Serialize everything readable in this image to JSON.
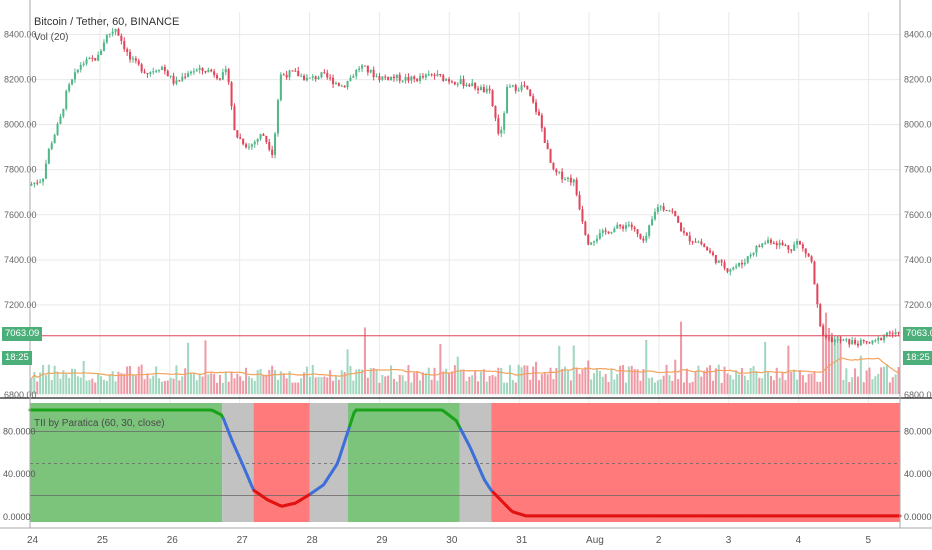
{
  "title_line": "Bitcoin / Tether, 60, BINANCE",
  "vol_label": "Vol (20)",
  "tii_label": "TII by Paratica (60, 30, close)",
  "badges": {
    "price": "7063.09",
    "time": "18:25",
    "price_right": "7063.09",
    "time_right": "18:25"
  },
  "colors": {
    "up": "#52b788",
    "down": "#e0455a",
    "grid": "#e9e9e9",
    "zone_green": "#7cc47c",
    "zone_red": "#ff7b7b",
    "zone_grey": "#c2c2c2",
    "tii_line_green": "#1aa31a",
    "tii_line_blue": "#3d6fd8",
    "tii_line_red": "#e31212",
    "vol_ma": "#f4a25c",
    "price_line": "#e0455a",
    "badge": "#4caf7a"
  },
  "chart_data": [
    {
      "type": "candlestick",
      "title": "Bitcoin / Tether, 60, BINANCE",
      "y_ticks": [
        "8400.00",
        "8200.00",
        "8000.00",
        "7800.00",
        "7600.00",
        "7400.00",
        "7200.00",
        "6800.00"
      ],
      "ylim": [
        6800,
        8500
      ],
      "x_ticks": [
        "24",
        "25",
        "26",
        "27",
        "28",
        "29",
        "30",
        "31",
        "Aug",
        "2",
        "3",
        "4",
        "5"
      ],
      "last_price": 7063.09,
      "series": [
        {
          "x": 0,
          "y": 7730
        },
        {
          "x": 0.2,
          "y": 7760
        },
        {
          "x": 0.3,
          "y": 7900
        },
        {
          "x": 0.45,
          "y": 8020
        },
        {
          "x": 0.55,
          "y": 8150
        },
        {
          "x": 0.75,
          "y": 8270
        },
        {
          "x": 1.0,
          "y": 8300
        },
        {
          "x": 1.1,
          "y": 8390
        },
        {
          "x": 1.25,
          "y": 8430
        },
        {
          "x": 1.45,
          "y": 8290
        },
        {
          "x": 1.7,
          "y": 8230
        },
        {
          "x": 1.9,
          "y": 8260
        },
        {
          "x": 2.1,
          "y": 8180
        },
        {
          "x": 2.3,
          "y": 8240
        },
        {
          "x": 2.6,
          "y": 8240
        },
        {
          "x": 2.75,
          "y": 8210
        },
        {
          "x": 2.85,
          "y": 8240
        },
        {
          "x": 2.95,
          "y": 7960
        },
        {
          "x": 3.15,
          "y": 7900
        },
        {
          "x": 3.35,
          "y": 7960
        },
        {
          "x": 3.5,
          "y": 7870
        },
        {
          "x": 3.6,
          "y": 8220
        },
        {
          "x": 3.8,
          "y": 8230
        },
        {
          "x": 4.0,
          "y": 8200
        },
        {
          "x": 4.2,
          "y": 8220
        },
        {
          "x": 4.5,
          "y": 8170
        },
        {
          "x": 4.75,
          "y": 8260
        },
        {
          "x": 5.0,
          "y": 8210
        },
        {
          "x": 5.2,
          "y": 8210
        },
        {
          "x": 5.5,
          "y": 8200
        },
        {
          "x": 5.8,
          "y": 8220
        },
        {
          "x": 6.0,
          "y": 8200
        },
        {
          "x": 6.3,
          "y": 8180
        },
        {
          "x": 6.6,
          "y": 8140
        },
        {
          "x": 6.75,
          "y": 7930
        },
        {
          "x": 6.85,
          "y": 8160
        },
        {
          "x": 7.1,
          "y": 8170
        },
        {
          "x": 7.3,
          "y": 8040
        },
        {
          "x": 7.5,
          "y": 7790
        },
        {
          "x": 7.8,
          "y": 7750
        },
        {
          "x": 8.0,
          "y": 7480
        },
        {
          "x": 8.3,
          "y": 7530
        },
        {
          "x": 8.6,
          "y": 7560
        },
        {
          "x": 8.8,
          "y": 7470
        },
        {
          "x": 9.0,
          "y": 7640
        },
        {
          "x": 9.2,
          "y": 7620
        },
        {
          "x": 9.4,
          "y": 7500
        },
        {
          "x": 9.6,
          "y": 7480
        },
        {
          "x": 9.9,
          "y": 7380
        },
        {
          "x": 10.0,
          "y": 7360
        },
        {
          "x": 10.2,
          "y": 7380
        },
        {
          "x": 10.4,
          "y": 7450
        },
        {
          "x": 10.6,
          "y": 7490
        },
        {
          "x": 10.9,
          "y": 7450
        },
        {
          "x": 11.0,
          "y": 7480
        },
        {
          "x": 11.2,
          "y": 7400
        },
        {
          "x": 11.35,
          "y": 7050
        },
        {
          "x": 11.6,
          "y": 7040
        },
        {
          "x": 11.9,
          "y": 7030
        },
        {
          "x": 12.1,
          "y": 7030
        },
        {
          "x": 12.3,
          "y": 7080
        },
        {
          "x": 12.45,
          "y": 7063
        }
      ]
    },
    {
      "type": "bar",
      "title": "Vol (20)",
      "note": "volume bars with 20-period moving average"
    },
    {
      "type": "line",
      "title": "TII by Paratica (60, 30, close)",
      "ylim": [
        0,
        100
      ],
      "y_ticks": [
        "80.0000",
        "40.0000",
        "0.0000"
      ],
      "zones": [
        {
          "from": 0.0,
          "to": 2.75,
          "state": "green"
        },
        {
          "from": 2.75,
          "to": 3.2,
          "state": "grey"
        },
        {
          "from": 3.2,
          "to": 4.0,
          "state": "red"
        },
        {
          "from": 4.0,
          "to": 4.55,
          "state": "grey"
        },
        {
          "from": 4.55,
          "to": 6.15,
          "state": "green"
        },
        {
          "from": 6.15,
          "to": 6.6,
          "state": "grey"
        },
        {
          "from": 6.6,
          "to": 12.45,
          "state": "red"
        }
      ],
      "series": [
        {
          "x": 0,
          "y": 100
        },
        {
          "x": 2.6,
          "y": 100
        },
        {
          "x": 2.75,
          "y": 95
        },
        {
          "x": 2.9,
          "y": 70
        },
        {
          "x": 3.05,
          "y": 48
        },
        {
          "x": 3.2,
          "y": 25
        },
        {
          "x": 3.4,
          "y": 16
        },
        {
          "x": 3.6,
          "y": 10
        },
        {
          "x": 3.8,
          "y": 13
        },
        {
          "x": 4.0,
          "y": 21
        },
        {
          "x": 4.2,
          "y": 30
        },
        {
          "x": 4.4,
          "y": 50
        },
        {
          "x": 4.55,
          "y": 80
        },
        {
          "x": 4.65,
          "y": 100
        },
        {
          "x": 5.9,
          "y": 100
        },
        {
          "x": 6.1,
          "y": 90
        },
        {
          "x": 6.3,
          "y": 65
        },
        {
          "x": 6.5,
          "y": 35
        },
        {
          "x": 6.6,
          "y": 25
        },
        {
          "x": 6.9,
          "y": 5
        },
        {
          "x": 7.1,
          "y": 1
        },
        {
          "x": 12.45,
          "y": 1
        }
      ]
    }
  ]
}
